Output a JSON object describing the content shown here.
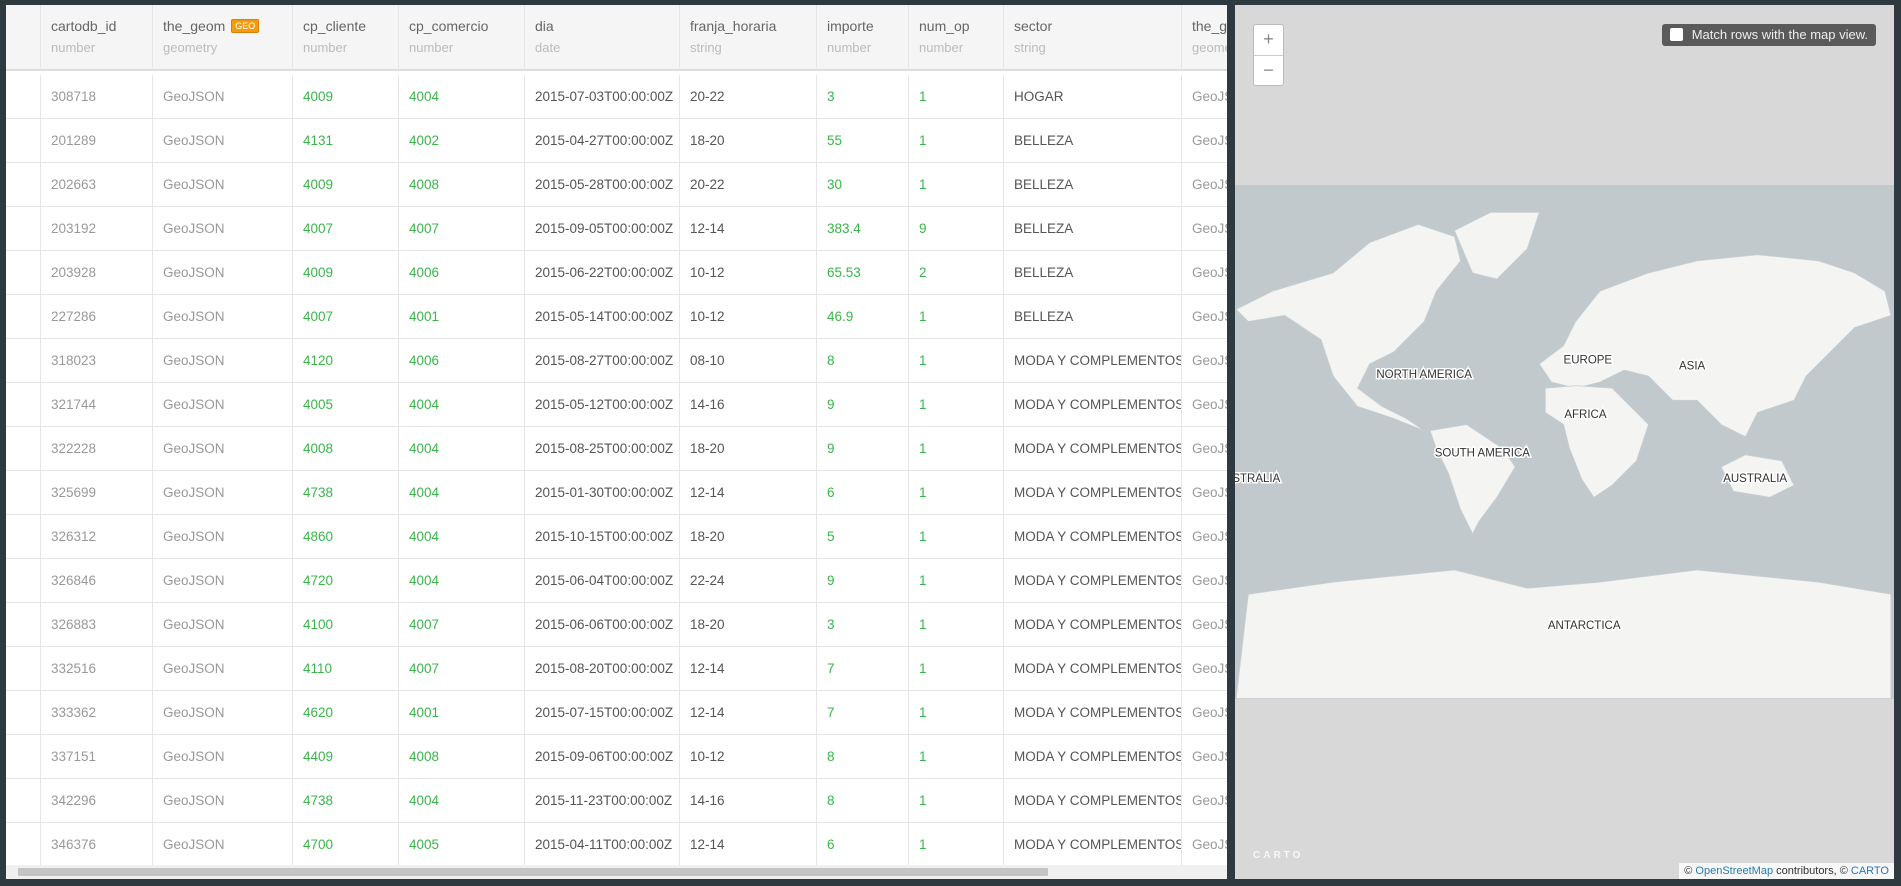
{
  "table": {
    "columns": [
      {
        "name": "cartodb_id",
        "type": "number"
      },
      {
        "name": "the_geom",
        "type": "geometry",
        "badge": "GEO"
      },
      {
        "name": "cp_cliente",
        "type": "number"
      },
      {
        "name": "cp_comercio",
        "type": "number"
      },
      {
        "name": "dia",
        "type": "date"
      },
      {
        "name": "franja_horaria",
        "type": "string"
      },
      {
        "name": "importe",
        "type": "number"
      },
      {
        "name": "num_op",
        "type": "number"
      },
      {
        "name": "sector",
        "type": "string"
      },
      {
        "name": "the_geom",
        "type": "geometry"
      }
    ],
    "rows": [
      [
        "308718",
        "GeoJSON",
        "4009",
        "4004",
        "2015-07-03T00:00:00Z",
        "20-22",
        "3",
        "1",
        "HOGAR",
        "GeoJSON"
      ],
      [
        "201289",
        "GeoJSON",
        "4131",
        "4002",
        "2015-04-27T00:00:00Z",
        "18-20",
        "55",
        "1",
        "BELLEZA",
        "GeoJSON"
      ],
      [
        "202663",
        "GeoJSON",
        "4009",
        "4008",
        "2015-05-28T00:00:00Z",
        "20-22",
        "30",
        "1",
        "BELLEZA",
        "GeoJSON"
      ],
      [
        "203192",
        "GeoJSON",
        "4007",
        "4007",
        "2015-09-05T00:00:00Z",
        "12-14",
        "383.4",
        "9",
        "BELLEZA",
        "GeoJSON"
      ],
      [
        "203928",
        "GeoJSON",
        "4009",
        "4006",
        "2015-06-22T00:00:00Z",
        "10-12",
        "65.53",
        "2",
        "BELLEZA",
        "GeoJSON"
      ],
      [
        "227286",
        "GeoJSON",
        "4007",
        "4001",
        "2015-05-14T00:00:00Z",
        "10-12",
        "46.9",
        "1",
        "BELLEZA",
        "GeoJSON"
      ],
      [
        "318023",
        "GeoJSON",
        "4120",
        "4006",
        "2015-08-27T00:00:00Z",
        "08-10",
        "8",
        "1",
        "MODA Y COMPLEMENTOS",
        "GeoJSON"
      ],
      [
        "321744",
        "GeoJSON",
        "4005",
        "4004",
        "2015-05-12T00:00:00Z",
        "14-16",
        "9",
        "1",
        "MODA Y COMPLEMENTOS",
        "GeoJSON"
      ],
      [
        "322228",
        "GeoJSON",
        "4008",
        "4004",
        "2015-08-25T00:00:00Z",
        "18-20",
        "9",
        "1",
        "MODA Y COMPLEMENTOS",
        "GeoJSON"
      ],
      [
        "325699",
        "GeoJSON",
        "4738",
        "4004",
        "2015-01-30T00:00:00Z",
        "12-14",
        "6",
        "1",
        "MODA Y COMPLEMENTOS",
        "GeoJSON"
      ],
      [
        "326312",
        "GeoJSON",
        "4860",
        "4004",
        "2015-10-15T00:00:00Z",
        "18-20",
        "5",
        "1",
        "MODA Y COMPLEMENTOS",
        "GeoJSON"
      ],
      [
        "326846",
        "GeoJSON",
        "4720",
        "4004",
        "2015-06-04T00:00:00Z",
        "22-24",
        "9",
        "1",
        "MODA Y COMPLEMENTOS",
        "GeoJSON"
      ],
      [
        "326883",
        "GeoJSON",
        "4100",
        "4007",
        "2015-06-06T00:00:00Z",
        "18-20",
        "3",
        "1",
        "MODA Y COMPLEMENTOS",
        "GeoJSON"
      ],
      [
        "332516",
        "GeoJSON",
        "4110",
        "4007",
        "2015-08-20T00:00:00Z",
        "12-14",
        "7",
        "1",
        "MODA Y COMPLEMENTOS",
        "GeoJSON"
      ],
      [
        "333362",
        "GeoJSON",
        "4620",
        "4001",
        "2015-07-15T00:00:00Z",
        "12-14",
        "7",
        "1",
        "MODA Y COMPLEMENTOS",
        "GeoJSON"
      ],
      [
        "337151",
        "GeoJSON",
        "4409",
        "4008",
        "2015-09-06T00:00:00Z",
        "10-12",
        "8",
        "1",
        "MODA Y COMPLEMENTOS",
        "GeoJSON"
      ],
      [
        "342296",
        "GeoJSON",
        "4738",
        "4004",
        "2015-11-23T00:00:00Z",
        "14-16",
        "8",
        "1",
        "MODA Y COMPLEMENTOS",
        "GeoJSON"
      ],
      [
        "346376",
        "GeoJSON",
        "4700",
        "4005",
        "2015-04-11T00:00:00Z",
        "12-14",
        "6",
        "1",
        "MODA Y COMPLEMENTOS",
        "GeoJSON"
      ]
    ]
  },
  "map": {
    "zoom_in": "+",
    "zoom_out": "−",
    "match_rows": "Match rows with the map view.",
    "labels": [
      "NORTH AMERICA",
      "EUROPE",
      "ASIA",
      "AFRICA",
      "SOUTH AMERICA",
      "AUSTRALIA",
      "ANTARCTICA",
      "AUSTRALIA"
    ],
    "logo": "CARTO",
    "attribution": {
      "prefix": "©",
      "osm": "OpenStreetMap",
      "middle": "contributors, ©",
      "carto": "CARTO"
    }
  }
}
